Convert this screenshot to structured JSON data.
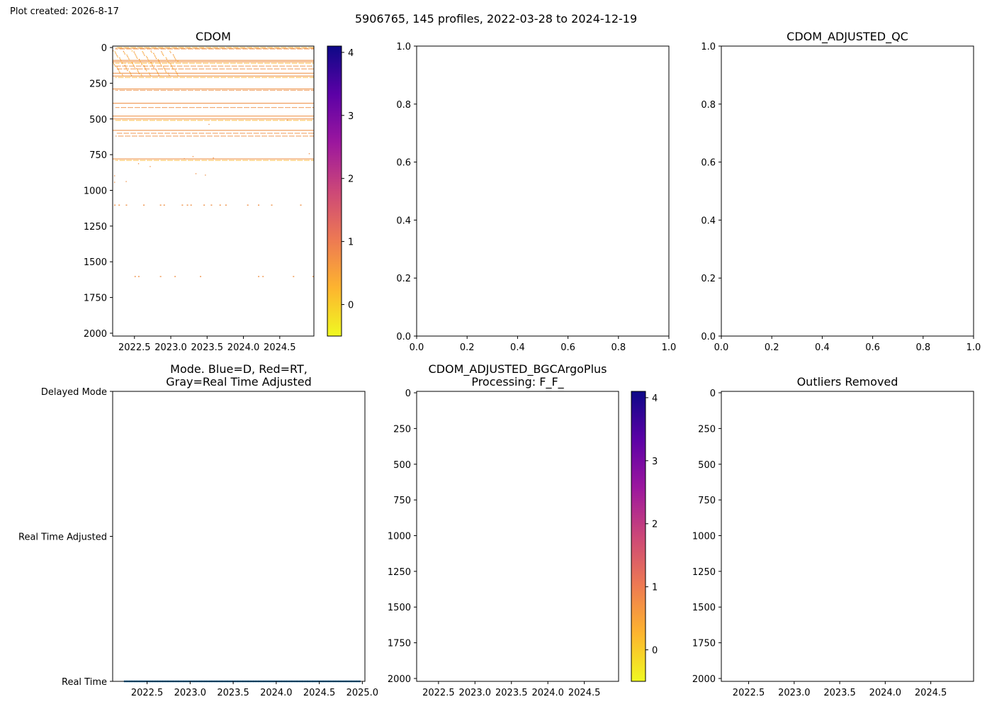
{
  "header": {
    "created": "Plot created: 2026-8-17",
    "suptitle": "5906765, 145 profiles, 2022-03-28 to 2024-12-19"
  },
  "colormap": [
    "#f0f921",
    "#fdb42f",
    "#ed7953",
    "#cc4778",
    "#9c179e",
    "#5c01a6",
    "#0d0887"
  ],
  "scatter_color": "#ed8a3c",
  "mode_color": "#1f77b4",
  "chart_data": [
    {
      "id": "cdom",
      "type": "scatter",
      "title": "CDOM",
      "xlabel": "",
      "ylabel": "",
      "xlim": [
        2022.2,
        2024.97
      ],
      "ylim": [
        2020,
        -10
      ],
      "y_inverted": true,
      "xticks": [
        2022.5,
        2023.0,
        2023.5,
        2024.0,
        2024.5
      ],
      "xtick_labels": [
        "2022.5",
        "2023.0",
        "2023.5",
        "2024.0",
        "2024.5"
      ],
      "yticks": [
        0,
        250,
        500,
        750,
        1000,
        1250,
        1500,
        1750,
        2000
      ],
      "ytick_labels": [
        "0",
        "250",
        "500",
        "750",
        "1000",
        "1250",
        "1500",
        "1750",
        "2000"
      ],
      "colorbar": {
        "range": [
          -0.5,
          4.1
        ],
        "ticks": [
          0,
          1,
          2,
          3,
          4
        ],
        "tick_labels": [
          "0",
          "1",
          "2",
          "3",
          "4"
        ]
      },
      "continuous_depths": [
        90,
        100,
        180,
        200,
        290,
        390,
        480,
        500,
        580,
        780
      ],
      "dense_depths": [
        0,
        5,
        10,
        110,
        130,
        150,
        210,
        300,
        420,
        510,
        600,
        620,
        790
      ],
      "sparse_points": [
        {
          "x": 2022.22,
          "y": 895
        },
        {
          "x": 2022.22,
          "y": 940
        },
        {
          "x": 2022.38,
          "y": 935
        },
        {
          "x": 2022.55,
          "y": 810
        },
        {
          "x": 2022.71,
          "y": 830
        },
        {
          "x": 2023.18,
          "y": 775
        },
        {
          "x": 2023.3,
          "y": 760
        },
        {
          "x": 2023.34,
          "y": 880
        },
        {
          "x": 2023.47,
          "y": 890
        },
        {
          "x": 2023.52,
          "y": 535
        },
        {
          "x": 2023.58,
          "y": 770
        },
        {
          "x": 2024.9,
          "y": 740
        },
        {
          "x": 2024.6,
          "y": 505
        }
      ],
      "row_1100": [
        2022.22,
        2022.28,
        2022.38,
        2022.62,
        2022.85,
        2022.9,
        2023.15,
        2023.22,
        2023.27,
        2023.45,
        2023.55,
        2023.67,
        2023.75,
        2024.05,
        2024.2,
        2024.38,
        2024.78
      ],
      "row_1600": [
        2022.5,
        2022.55,
        2022.85,
        2023.05,
        2023.4,
        2024.2,
        2024.26,
        2024.68,
        2024.95
      ]
    },
    {
      "id": "empty-mid",
      "type": "scatter",
      "title": "",
      "xlim": [
        0,
        1
      ],
      "ylim": [
        0,
        1
      ],
      "xticks": [
        0,
        0.2,
        0.4,
        0.6,
        0.8,
        1.0
      ],
      "xtick_labels": [
        "0.0",
        "0.2",
        "0.4",
        "0.6",
        "0.8",
        "1.0"
      ],
      "yticks": [
        0,
        0.2,
        0.4,
        0.6,
        0.8,
        1.0
      ],
      "ytick_labels": [
        "0.0",
        "0.2",
        "0.4",
        "0.6",
        "0.8",
        "1.0"
      ]
    },
    {
      "id": "adjusted-qc",
      "type": "scatter",
      "title": "CDOM_ADJUSTED_QC",
      "xlim": [
        0,
        1
      ],
      "ylim": [
        0,
        1
      ],
      "xticks": [
        0,
        0.2,
        0.4,
        0.6,
        0.8,
        1.0
      ],
      "xtick_labels": [
        "0.0",
        "0.2",
        "0.4",
        "0.6",
        "0.8",
        "1.0"
      ],
      "yticks": [
        0,
        0.2,
        0.4,
        0.6,
        0.8,
        1.0
      ],
      "ytick_labels": [
        "0.0",
        "0.2",
        "0.4",
        "0.6",
        "0.8",
        "1.0"
      ]
    },
    {
      "id": "mode",
      "type": "scatter",
      "title": [
        "Mode. Blue=D, Red=RT,",
        "Gray=Real Time Adjusted"
      ],
      "xlim": [
        2022.1,
        2025.03
      ],
      "ylim": [
        0,
        2
      ],
      "xticks": [
        2022.5,
        2023.0,
        2023.5,
        2024.0,
        2024.5,
        2025.0
      ],
      "xtick_labels": [
        "2022.5",
        "2023.0",
        "2023.5",
        "2024.0",
        "2024.5",
        "2025.0"
      ],
      "yticks": [
        2,
        1,
        0
      ],
      "ytick_labels": [
        "Delayed Mode",
        "Real Time Adjusted",
        "Real Time"
      ],
      "series": [
        {
          "x_start": 2022.24,
          "x_end": 2024.97,
          "count": 145,
          "y": 0
        }
      ]
    },
    {
      "id": "bgc-argo-plus",
      "type": "scatter",
      "title": [
        "CDOM_ADJUSTED_BGCArgoPlus",
        "Processing: F_F_"
      ],
      "xlim": [
        2022.2,
        2024.97
      ],
      "ylim": [
        2020,
        -10
      ],
      "y_inverted": true,
      "xticks": [
        2022.5,
        2023.0,
        2023.5,
        2024.0,
        2024.5
      ],
      "xtick_labels": [
        "2022.5",
        "2023.0",
        "2023.5",
        "2024.0",
        "2024.5"
      ],
      "yticks": [
        0,
        250,
        500,
        750,
        1000,
        1250,
        1500,
        1750,
        2000
      ],
      "ytick_labels": [
        "0",
        "250",
        "500",
        "750",
        "1000",
        "1250",
        "1500",
        "1750",
        "2000"
      ],
      "colorbar": {
        "range": [
          -0.5,
          4.1
        ],
        "ticks": [
          0,
          1,
          2,
          3,
          4
        ],
        "tick_labels": [
          "0",
          "1",
          "2",
          "3",
          "4"
        ]
      }
    },
    {
      "id": "outliers",
      "type": "scatter",
      "title": "Outliers Removed",
      "xlim": [
        2022.2,
        2024.97
      ],
      "ylim": [
        2020,
        -10
      ],
      "y_inverted": true,
      "xticks": [
        2022.5,
        2023.0,
        2023.5,
        2024.0,
        2024.5
      ],
      "xtick_labels": [
        "2022.5",
        "2023.0",
        "2023.5",
        "2024.0",
        "2024.5"
      ],
      "yticks": [
        0,
        250,
        500,
        750,
        1000,
        1250,
        1500,
        1750,
        2000
      ],
      "ytick_labels": [
        "0",
        "250",
        "500",
        "750",
        "1000",
        "1250",
        "1500",
        "1750",
        "2000"
      ]
    }
  ]
}
